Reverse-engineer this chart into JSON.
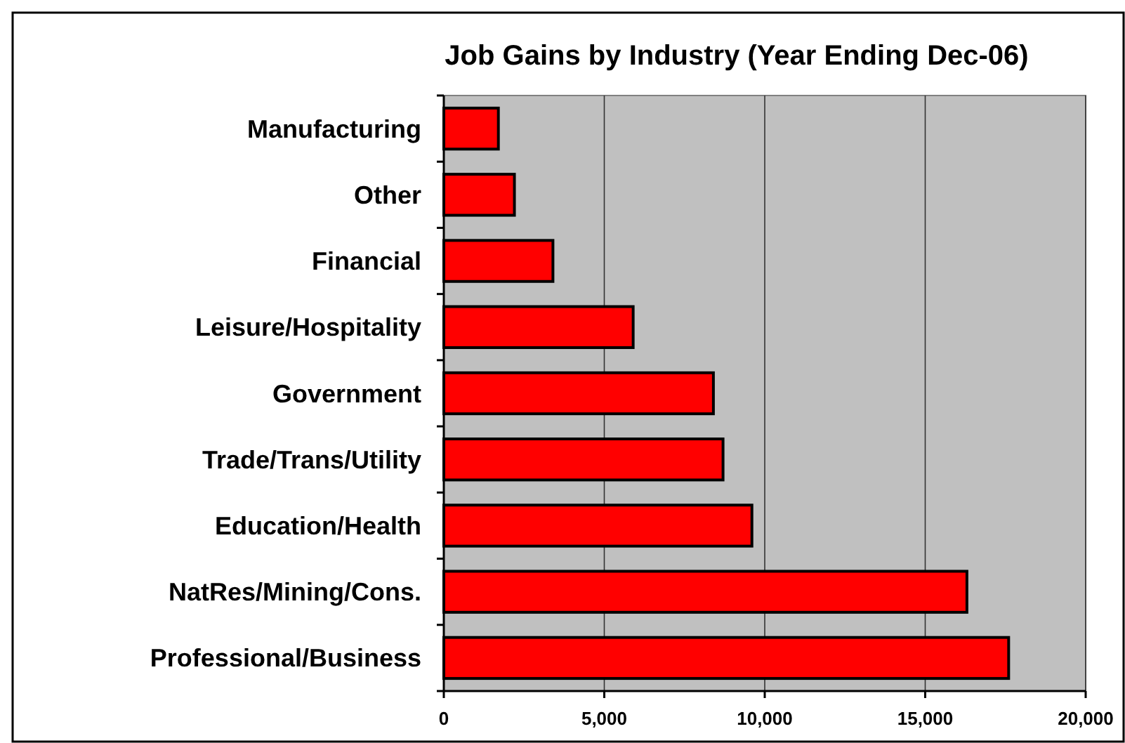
{
  "chart_data": {
    "type": "bar",
    "orientation": "horizontal",
    "title": "Job Gains by Industry (Year Ending Dec-06)",
    "categories": [
      "Manufacturing",
      "Other",
      "Financial",
      "Leisure/Hospitality",
      "Government",
      "Trade/Trans/Utility",
      "Education/Health",
      "NatRes/Mining/Cons.",
      "Professional/Business"
    ],
    "values": [
      1700,
      2200,
      3400,
      5900,
      8400,
      8700,
      9600,
      16300,
      17600
    ],
    "color": "#ff0000",
    "xlim": [
      0,
      20000
    ],
    "xticks": [
      {
        "value": 0,
        "label": "0"
      },
      {
        "value": 5000,
        "label": "5,000"
      },
      {
        "value": 10000,
        "label": "10,000"
      },
      {
        "value": 15000,
        "label": "15,000"
      },
      {
        "value": 20000,
        "label": "20,000"
      }
    ],
    "grid": "x"
  }
}
